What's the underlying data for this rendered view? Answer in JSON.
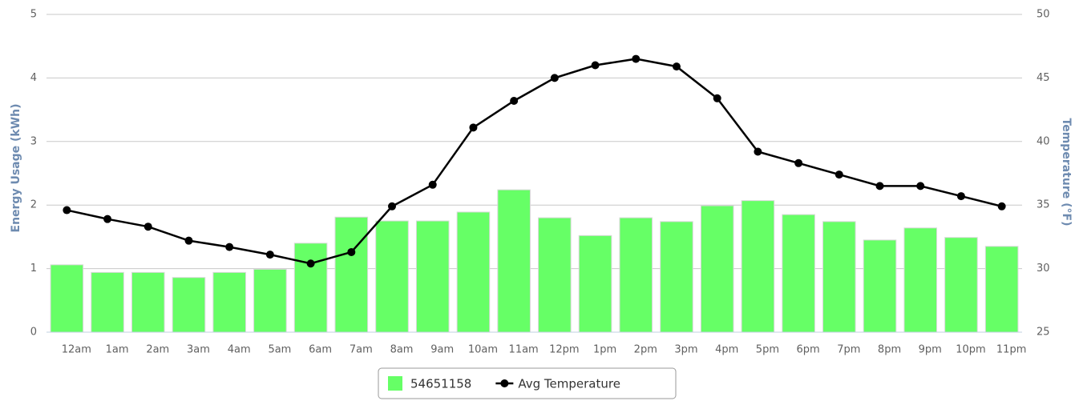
{
  "chart_data": {
    "type": "bar",
    "categories": [
      "12am",
      "1am",
      "2am",
      "3am",
      "4am",
      "5am",
      "6am",
      "7am",
      "8am",
      "9am",
      "10am",
      "11am",
      "12pm",
      "1pm",
      "2pm",
      "3pm",
      "4pm",
      "5pm",
      "6pm",
      "7pm",
      "8pm",
      "9pm",
      "10pm",
      "11pm"
    ],
    "y_label": "Energy Usage (kWh)",
    "y2_label": "Temperature (°F)",
    "ylim": [
      0,
      5
    ],
    "yticks": [
      0,
      1,
      2,
      3,
      4,
      5
    ],
    "y2lim": [
      25,
      50
    ],
    "y2ticks": [
      25,
      30,
      35,
      40,
      45,
      50
    ],
    "grid": true,
    "legend": "bottom",
    "series": [
      {
        "name": "54651158",
        "type": "bar",
        "color": "#66ff66",
        "values": [
          1.06,
          0.94,
          0.94,
          0.86,
          0.94,
          0.99,
          1.4,
          1.81,
          1.75,
          1.75,
          1.89,
          2.24,
          1.8,
          1.52,
          1.8,
          1.74,
          1.99,
          2.07,
          1.85,
          1.74,
          1.45,
          1.64,
          1.49,
          1.35
        ]
      },
      {
        "name": "Avg Temperature",
        "type": "line",
        "axis": "y2",
        "color": "#000000",
        "values": [
          34.6,
          33.9,
          33.3,
          32.2,
          31.7,
          31.1,
          30.4,
          31.3,
          34.9,
          36.6,
          41.1,
          43.2,
          45.0,
          46.0,
          46.5,
          45.9,
          43.4,
          39.2,
          38.3,
          37.4,
          36.5,
          36.5,
          35.7,
          34.9
        ]
      }
    ]
  }
}
